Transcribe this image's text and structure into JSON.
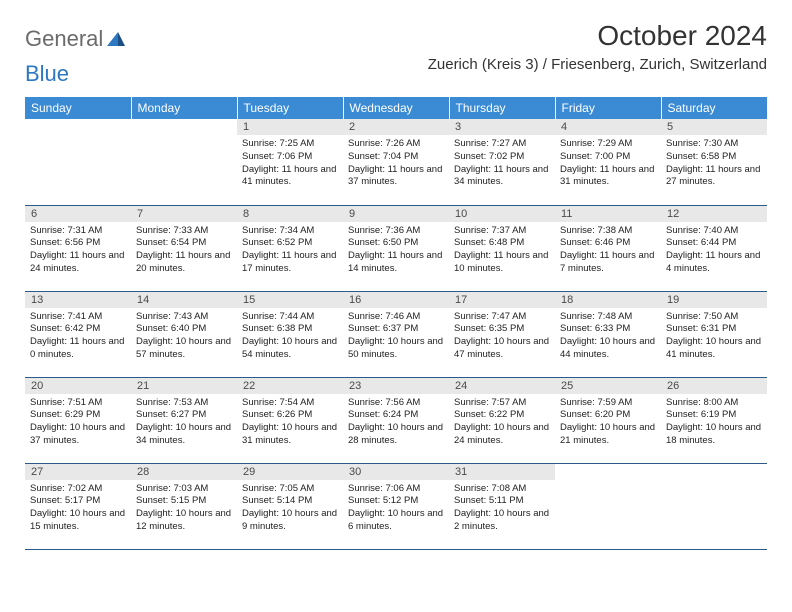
{
  "logo": {
    "word1": "General",
    "word2": "Blue"
  },
  "title": "October 2024",
  "location": "Zuerich (Kreis 3) / Friesenberg, Zurich, Switzerland",
  "colors": {
    "header_bg": "#3b8bd4",
    "header_text": "#ffffff",
    "daynum_bg": "#e8e8e8",
    "daynum_text": "#4a4a4a",
    "cell_border": "#2e5a8a",
    "logo_gray": "#6b6b6b",
    "logo_blue": "#2e78c2"
  },
  "day_headers": [
    "Sunday",
    "Monday",
    "Tuesday",
    "Wednesday",
    "Thursday",
    "Friday",
    "Saturday"
  ],
  "weeks": [
    [
      null,
      null,
      {
        "n": "1",
        "sr": "7:25 AM",
        "ss": "7:06 PM",
        "dl": "11 hours and 41 minutes."
      },
      {
        "n": "2",
        "sr": "7:26 AM",
        "ss": "7:04 PM",
        "dl": "11 hours and 37 minutes."
      },
      {
        "n": "3",
        "sr": "7:27 AM",
        "ss": "7:02 PM",
        "dl": "11 hours and 34 minutes."
      },
      {
        "n": "4",
        "sr": "7:29 AM",
        "ss": "7:00 PM",
        "dl": "11 hours and 31 minutes."
      },
      {
        "n": "5",
        "sr": "7:30 AM",
        "ss": "6:58 PM",
        "dl": "11 hours and 27 minutes."
      }
    ],
    [
      {
        "n": "6",
        "sr": "7:31 AM",
        "ss": "6:56 PM",
        "dl": "11 hours and 24 minutes."
      },
      {
        "n": "7",
        "sr": "7:33 AM",
        "ss": "6:54 PM",
        "dl": "11 hours and 20 minutes."
      },
      {
        "n": "8",
        "sr": "7:34 AM",
        "ss": "6:52 PM",
        "dl": "11 hours and 17 minutes."
      },
      {
        "n": "9",
        "sr": "7:36 AM",
        "ss": "6:50 PM",
        "dl": "11 hours and 14 minutes."
      },
      {
        "n": "10",
        "sr": "7:37 AM",
        "ss": "6:48 PM",
        "dl": "11 hours and 10 minutes."
      },
      {
        "n": "11",
        "sr": "7:38 AM",
        "ss": "6:46 PM",
        "dl": "11 hours and 7 minutes."
      },
      {
        "n": "12",
        "sr": "7:40 AM",
        "ss": "6:44 PM",
        "dl": "11 hours and 4 minutes."
      }
    ],
    [
      {
        "n": "13",
        "sr": "7:41 AM",
        "ss": "6:42 PM",
        "dl": "11 hours and 0 minutes."
      },
      {
        "n": "14",
        "sr": "7:43 AM",
        "ss": "6:40 PM",
        "dl": "10 hours and 57 minutes."
      },
      {
        "n": "15",
        "sr": "7:44 AM",
        "ss": "6:38 PM",
        "dl": "10 hours and 54 minutes."
      },
      {
        "n": "16",
        "sr": "7:46 AM",
        "ss": "6:37 PM",
        "dl": "10 hours and 50 minutes."
      },
      {
        "n": "17",
        "sr": "7:47 AM",
        "ss": "6:35 PM",
        "dl": "10 hours and 47 minutes."
      },
      {
        "n": "18",
        "sr": "7:48 AM",
        "ss": "6:33 PM",
        "dl": "10 hours and 44 minutes."
      },
      {
        "n": "19",
        "sr": "7:50 AM",
        "ss": "6:31 PM",
        "dl": "10 hours and 41 minutes."
      }
    ],
    [
      {
        "n": "20",
        "sr": "7:51 AM",
        "ss": "6:29 PM",
        "dl": "10 hours and 37 minutes."
      },
      {
        "n": "21",
        "sr": "7:53 AM",
        "ss": "6:27 PM",
        "dl": "10 hours and 34 minutes."
      },
      {
        "n": "22",
        "sr": "7:54 AM",
        "ss": "6:26 PM",
        "dl": "10 hours and 31 minutes."
      },
      {
        "n": "23",
        "sr": "7:56 AM",
        "ss": "6:24 PM",
        "dl": "10 hours and 28 minutes."
      },
      {
        "n": "24",
        "sr": "7:57 AM",
        "ss": "6:22 PM",
        "dl": "10 hours and 24 minutes."
      },
      {
        "n": "25",
        "sr": "7:59 AM",
        "ss": "6:20 PM",
        "dl": "10 hours and 21 minutes."
      },
      {
        "n": "26",
        "sr": "8:00 AM",
        "ss": "6:19 PM",
        "dl": "10 hours and 18 minutes."
      }
    ],
    [
      {
        "n": "27",
        "sr": "7:02 AM",
        "ss": "5:17 PM",
        "dl": "10 hours and 15 minutes."
      },
      {
        "n": "28",
        "sr": "7:03 AM",
        "ss": "5:15 PM",
        "dl": "10 hours and 12 minutes."
      },
      {
        "n": "29",
        "sr": "7:05 AM",
        "ss": "5:14 PM",
        "dl": "10 hours and 9 minutes."
      },
      {
        "n": "30",
        "sr": "7:06 AM",
        "ss": "5:12 PM",
        "dl": "10 hours and 6 minutes."
      },
      {
        "n": "31",
        "sr": "7:08 AM",
        "ss": "5:11 PM",
        "dl": "10 hours and 2 minutes."
      },
      null,
      null
    ]
  ],
  "labels": {
    "sunrise": "Sunrise:",
    "sunset": "Sunset:",
    "daylight": "Daylight:"
  }
}
